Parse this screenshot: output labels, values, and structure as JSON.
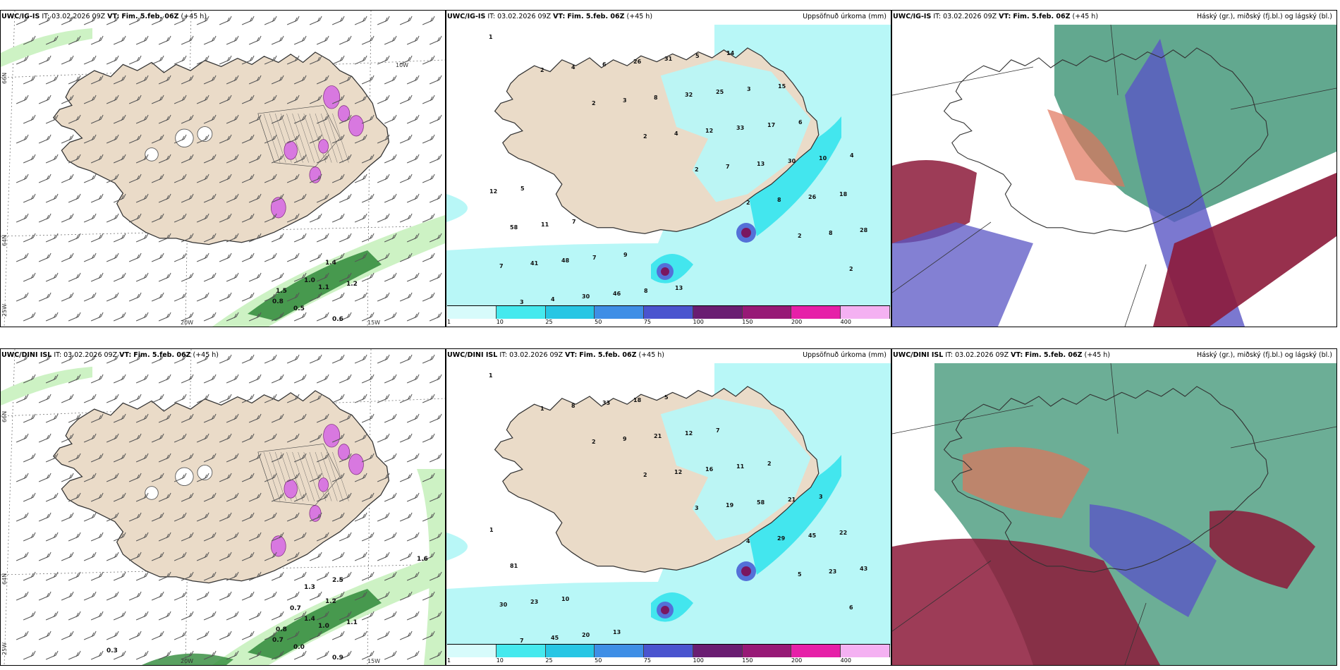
{
  "colors": {
    "land": "#eadbc8",
    "coast": "#333333",
    "precip_light": "#b8f7f7",
    "precip_mid": "#43e6ee",
    "precip_heavy": "#5470d8",
    "precip_extreme": "#7a1660",
    "snow_magenta": "#d878e0",
    "wind_barb": "#555555",
    "green_light": "#cdf2c4",
    "green_dark": "#2f8a3a",
    "cloud_high": "#2e8b6a",
    "cloud_mid": "#5a56c4",
    "cloud_low": "#8c1a3a"
  },
  "icons": [
    "wind-barb-icon",
    "hatch-pattern-icon"
  ],
  "panels": {
    "top_left": {
      "model": "UWC/IG-IS",
      "it": "IT: 03.02.2026 09Z",
      "vt_label": "VT:",
      "vt": "Fim. 5.feb. 06Z",
      "lead": "(+45 h)",
      "lat_labels": [
        "66N",
        "64N",
        "25W"
      ],
      "lon_labels": [
        "20W",
        "15W",
        "10W"
      ],
      "values": [
        "1.0",
        "0.5",
        "0.6",
        "0.8",
        "1.5",
        "1.1",
        "1.2",
        "1.4"
      ]
    },
    "top_mid": {
      "model": "UWC/IG-IS",
      "it": "IT: 03.02.2026 09Z",
      "vt_label": "VT:",
      "vt": "Fim. 5.feb. 06Z",
      "lead": "(+45 h)",
      "title_right": "Uppsöfnuð úrkoma (mm)",
      "numbers": [
        "1",
        "2",
        "2",
        "2",
        "2",
        "2",
        "2",
        "2",
        "3",
        "4",
        "3",
        "4",
        "7",
        "8",
        "8",
        "7",
        "4",
        "6",
        "8",
        "12",
        "13",
        "26",
        "28",
        "41",
        "30",
        "26",
        "32",
        "33",
        "30",
        "18",
        "58",
        "48",
        "46",
        "31",
        "25",
        "17",
        "10",
        "12",
        "11",
        "7",
        "8",
        "5",
        "3",
        "6",
        "4",
        "5",
        "7",
        "9",
        "13",
        "14",
        "15"
      ]
    },
    "top_right": {
      "model": "UWC/IG-IS",
      "it": "IT: 03.02.2026 09Z",
      "vt_label": "VT:",
      "vt": "Fim. 5.feb. 06Z",
      "lead": "(+45 h)",
      "title_right": "Háský (gr.), miðský (fj.bl.) og lágský (bl.)"
    },
    "bottom_left": {
      "model": "UWC/DINI ISL",
      "it": "IT: 03.02.2026 09Z",
      "vt_label": "VT:",
      "vt": "Fim. 5.feb. 06Z",
      "lead": "(+45 h)",
      "lat_labels": [
        "66N",
        "64N",
        "25W"
      ],
      "lon_labels": [
        "20W",
        "15W"
      ],
      "values": [
        "1.4",
        "0.0",
        "0.9",
        "0.7",
        "0.8",
        "1.0",
        "1.1",
        "1.2",
        "2.5",
        "1.6",
        "0.3",
        "0.7",
        "1.3"
      ]
    },
    "bottom_mid": {
      "model": "UWC/DINI ISL",
      "it": "IT: 03.02.2026 09Z",
      "vt_label": "VT:",
      "vt": "Fim. 5.feb. 06Z",
      "lead": "(+45 h)",
      "title_right": "Uppsöfnuð úrkoma (mm)",
      "numbers": [
        "1",
        "1",
        "2",
        "2",
        "3",
        "4",
        "5",
        "6",
        "7",
        "8",
        "9",
        "12",
        "19",
        "29",
        "23",
        "30",
        "45",
        "33",
        "21",
        "16",
        "58",
        "45",
        "43",
        "23",
        "20",
        "18",
        "12",
        "11",
        "21",
        "22",
        "81",
        "10",
        "13",
        "5",
        "7",
        "2",
        "3",
        "1"
      ]
    },
    "bottom_right": {
      "model": "UWC/DINI ISL",
      "it": "IT: 03.02.2026 09Z",
      "vt_label": "VT:",
      "vt": "Fim. 5.feb. 06Z",
      "lead": "(+45 h)",
      "title_right": "Háský (gr.), miðský (fj.bl.) og lágský (bl.)"
    }
  },
  "colorbar": {
    "ticks": [
      "1",
      "10",
      "25",
      "50",
      "75",
      "100",
      "150",
      "200",
      "400"
    ],
    "colors": [
      "#d7fbfb",
      "#45e9ee",
      "#27c6e4",
      "#3e8ee6",
      "#4a54cf",
      "#6a1d72",
      "#971976",
      "#e620a8",
      "#f4b1f2"
    ]
  }
}
